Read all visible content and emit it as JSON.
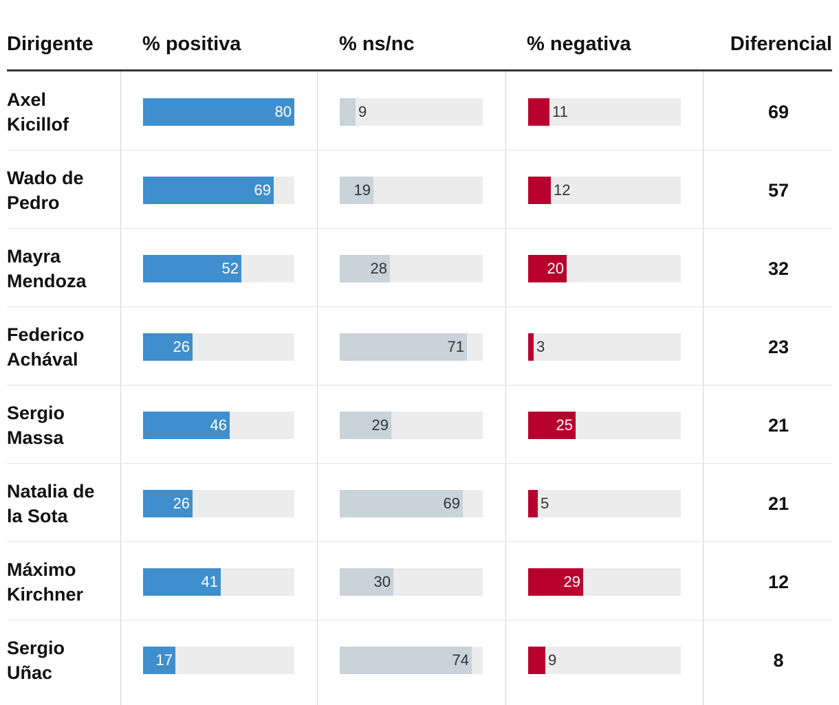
{
  "headers": {
    "dirigente": "Dirigente",
    "positiva": "% positiva",
    "nsnc": "% ns/nc",
    "negativa": "% negativa",
    "diferencial": "Diferencial"
  },
  "colors": {
    "positiva": "#3f8ecd",
    "nsnc": "#c8d3da",
    "negativa": "#b8002f",
    "track": "#ececec"
  },
  "chart_data": {
    "type": "table",
    "max_value": 80,
    "columns": [
      "Dirigente",
      "% positiva",
      "% ns/nc",
      "% negativa",
      "Diferencial"
    ],
    "rows": [
      {
        "name": "Axel Kicillof",
        "positiva": 80,
        "nsnc": 9,
        "negativa": 11,
        "diferencial": 69
      },
      {
        "name": "Wado de Pedro",
        "positiva": 69,
        "nsnc": 19,
        "negativa": 12,
        "diferencial": 57
      },
      {
        "name": "Mayra Mendoza",
        "positiva": 52,
        "nsnc": 28,
        "negativa": 20,
        "diferencial": 32
      },
      {
        "name": "Federico Achával",
        "positiva": 26,
        "nsnc": 71,
        "negativa": 3,
        "diferencial": 23
      },
      {
        "name": "Sergio Massa",
        "positiva": 46,
        "nsnc": 29,
        "negativa": 25,
        "diferencial": 21
      },
      {
        "name": "Natalia de la Sota",
        "positiva": 26,
        "nsnc": 69,
        "negativa": 5,
        "diferencial": 21
      },
      {
        "name": "Máximo Kirchner",
        "positiva": 41,
        "nsnc": 30,
        "negativa": 29,
        "diferencial": 12
      },
      {
        "name": "Sergio Uñac",
        "positiva": 17,
        "nsnc": 74,
        "negativa": 9,
        "diferencial": 8
      }
    ]
  }
}
